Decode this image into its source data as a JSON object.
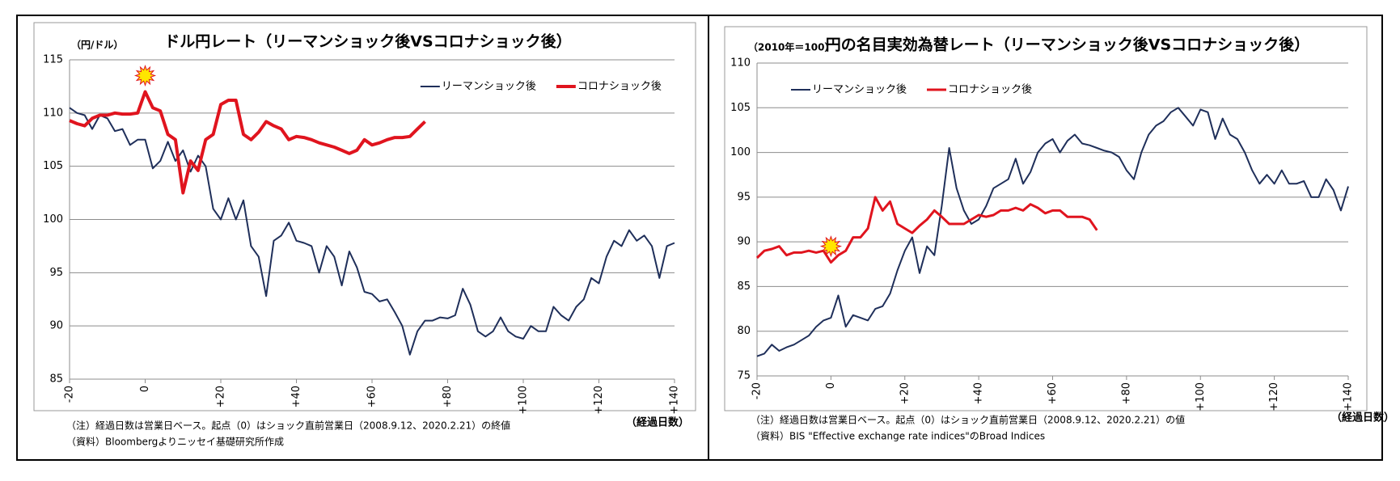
{
  "chart_data": [
    {
      "type": "line",
      "title": "ドル円レート（リーマンショック後VSコロナショック後）",
      "y_label": "（円/ドル）",
      "x_label": "（経過日数）",
      "notes": [
        "（注）経過日数は営業日ベース。起点（0）はショック直前営業日（2008.9.12、2020.2.21）の終値",
        "（資料）Bloombergよりニッセイ基礎研究所作成"
      ],
      "legend": "top-right",
      "grid": true,
      "xlim": [
        -20,
        140
      ],
      "xticks": [
        -20,
        0,
        {
          "value": 20,
          "label": "+20"
        },
        {
          "value": 40,
          "label": "+40"
        },
        {
          "value": 60,
          "label": "+60"
        },
        {
          "value": 80,
          "label": "+80"
        },
        {
          "value": 100,
          "label": "+100"
        },
        {
          "value": 120,
          "label": "+120"
        },
        {
          "value": 140,
          "label": "+140"
        }
      ],
      "ylim": [
        85,
        115
      ],
      "yticks": [
        85,
        90,
        95,
        100,
        105,
        110,
        115
      ],
      "x": [
        -20,
        -18,
        -16,
        -14,
        -12,
        -10,
        -8,
        -6,
        -4,
        -2,
        0,
        2,
        4,
        6,
        8,
        10,
        12,
        14,
        16,
        18,
        20,
        22,
        24,
        26,
        28,
        30,
        32,
        34,
        36,
        38,
        40,
        42,
        44,
        46,
        48,
        50,
        52,
        54,
        56,
        58,
        60,
        62,
        64,
        66,
        68,
        70,
        72,
        74,
        76,
        78,
        80,
        82,
        84,
        86,
        88,
        90,
        92,
        94,
        96,
        98,
        100,
        102,
        104,
        106,
        108,
        110,
        112,
        114,
        116,
        118,
        120,
        122,
        124,
        126,
        128,
        130,
        132,
        134,
        136,
        138,
        140
      ],
      "series": [
        {
          "name": "リーマンショック後",
          "color": "#1f2f5a",
          "width": 2,
          "values": [
            110.5,
            110,
            109.8,
            108.5,
            109.8,
            109.5,
            108.3,
            108.5,
            107,
            107.5,
            107.5,
            104.8,
            105.5,
            107.3,
            105.5,
            106.5,
            104.5,
            106,
            105,
            101,
            100,
            102,
            100,
            101.8,
            97.5,
            96.5,
            92.8,
            98,
            98.5,
            99.7,
            98,
            97.8,
            97.5,
            95,
            97.5,
            96.5,
            93.8,
            97,
            95.5,
            93.2,
            93,
            92.3,
            92.5,
            91.3,
            90,
            87.3,
            89.5,
            90.5,
            90.5,
            90.8,
            90.7,
            91,
            93.5,
            92,
            89.5,
            89,
            89.5,
            90.8,
            89.5,
            89,
            88.8,
            90,
            89.5,
            89.5,
            91.8,
            91,
            90.5,
            91.8,
            92.5,
            94.5,
            94,
            96.5,
            98,
            97.5,
            99,
            98,
            98.5,
            97.5,
            94.5,
            97.5,
            97.8
          ]
        },
        {
          "name": "コロナショック後",
          "color": "#e0141e",
          "width": 4,
          "values": [
            109.3,
            109,
            108.8,
            109.5,
            109.8,
            109.8,
            110,
            109.9,
            109.9,
            110,
            112,
            110.5,
            110.2,
            108,
            107.5,
            102.5,
            105.5,
            104.6,
            107.5,
            108,
            110.8,
            111.2,
            111.2,
            108,
            107.5,
            108.2,
            109.2,
            108.8,
            108.5,
            107.5,
            107.8,
            107.7,
            107.5,
            107.2,
            107,
            106.8,
            106.5,
            106.2,
            106.5,
            107.5,
            107,
            107.2,
            107.5,
            107.7,
            107.7,
            107.8,
            108.5,
            109.2,
            null,
            null,
            null,
            null,
            null,
            null,
            null,
            null,
            null,
            null,
            null,
            null,
            null,
            null,
            null,
            null,
            null,
            null,
            null,
            null,
            null,
            null,
            null,
            null,
            null,
            null,
            null,
            null,
            null,
            null,
            null,
            null,
            null
          ]
        }
      ]
    },
    {
      "type": "line",
      "title": "円の名目実効為替レート（リーマンショック後VSコロナショック後）",
      "y_label": "（2010年＝100）",
      "x_label": "（経過日数）",
      "notes": [
        "（注）経過日数は営業日ベース。起点（0）はショック直前営業日（2008.9.12、2020.2.21）の値",
        "（資料）BIS \"Effective exchange rate indices\"のBroad Indices"
      ],
      "legend": "top-left",
      "grid": true,
      "xlim": [
        -20,
        140
      ],
      "xticks": [
        -20,
        0,
        {
          "value": 20,
          "label": "+20"
        },
        {
          "value": 40,
          "label": "+40"
        },
        {
          "value": 60,
          "label": "+60"
        },
        {
          "value": 80,
          "label": "+80"
        },
        {
          "value": 100,
          "label": "+100"
        },
        {
          "value": 120,
          "label": "+120"
        },
        {
          "value": 140,
          "label": "+140"
        }
      ],
      "ylim": [
        75,
        110
      ],
      "yticks": [
        75,
        80,
        85,
        90,
        95,
        100,
        105,
        110
      ],
      "x": [
        -20,
        -18,
        -16,
        -14,
        -12,
        -10,
        -8,
        -6,
        -4,
        -2,
        0,
        2,
        4,
        6,
        8,
        10,
        12,
        14,
        16,
        18,
        20,
        22,
        24,
        26,
        28,
        30,
        32,
        34,
        36,
        38,
        40,
        42,
        44,
        46,
        48,
        50,
        52,
        54,
        56,
        58,
        60,
        62,
        64,
        66,
        68,
        70,
        72,
        74,
        76,
        78,
        80,
        82,
        84,
        86,
        88,
        90,
        92,
        94,
        96,
        98,
        100,
        102,
        104,
        106,
        108,
        110,
        112,
        114,
        116,
        118,
        120,
        122,
        124,
        126,
        128,
        130,
        132,
        134,
        136,
        138,
        140
      ],
      "series": [
        {
          "name": "リーマンショック後",
          "color": "#1f2f5a",
          "width": 2,
          "values": [
            77.2,
            77.5,
            78.5,
            77.8,
            78.2,
            78.5,
            79,
            79.5,
            80.5,
            81.2,
            81.5,
            84,
            80.5,
            81.8,
            81.5,
            81.2,
            82.5,
            82.8,
            84.2,
            86.8,
            89,
            90.5,
            86.5,
            89.5,
            88.5,
            94,
            100.5,
            96,
            93.5,
            92,
            92.5,
            94,
            96,
            96.5,
            97,
            99.3,
            96.5,
            97.8,
            100,
            101,
            101.5,
            100,
            101.3,
            102,
            101,
            100.8,
            100.5,
            100.2,
            100,
            99.5,
            98,
            97,
            100,
            102,
            103,
            103.5,
            104.5,
            105,
            104,
            103,
            104.8,
            104.5,
            101.5,
            103.8,
            102,
            101.5,
            100,
            98,
            96.5,
            97.5,
            96.5,
            98,
            96.5,
            96.5,
            96.8,
            95,
            95,
            97,
            95.8,
            93.5,
            96.2
          ]
        },
        {
          "name": "コロナショック後",
          "color": "#e0141e",
          "width": 3,
          "values": [
            88.2,
            89,
            89.2,
            89.5,
            88.5,
            88.8,
            88.8,
            89,
            88.8,
            89,
            87.7,
            88.5,
            89,
            90.5,
            90.5,
            91.5,
            95,
            93.5,
            94.5,
            92,
            91.5,
            91,
            91.8,
            92.5,
            93.5,
            92.8,
            92,
            92,
            92,
            92.5,
            93,
            92.8,
            93,
            93.5,
            93.5,
            93.8,
            93.5,
            94.2,
            93.8,
            93.2,
            93.5,
            93.5,
            92.8,
            92.8,
            92.8,
            92.5,
            91.3,
            null,
            null,
            null,
            null,
            null,
            null,
            null,
            null,
            null,
            null,
            null,
            null,
            null,
            null,
            null,
            null,
            null,
            null,
            null,
            null,
            null,
            null,
            null,
            null,
            null,
            null,
            null,
            null,
            null,
            null,
            null,
            null,
            null,
            null
          ]
        }
      ]
    }
  ]
}
